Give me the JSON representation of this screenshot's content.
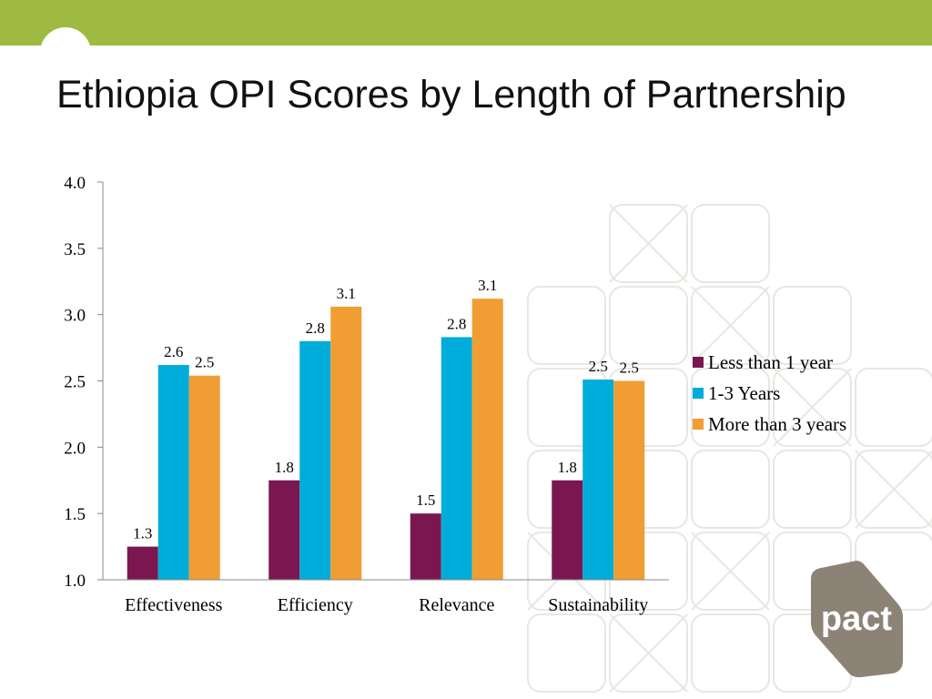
{
  "slide": {
    "title": "Ethiopia OPI Scores by Length of Partnership",
    "band_color": "#9fba40"
  },
  "logo": {
    "text": "pact",
    "color": "#8c8376"
  },
  "chart_data": {
    "type": "bar",
    "categories": [
      "Effectiveness",
      "Efficiency",
      "Relevance",
      "Sustainability"
    ],
    "series": [
      {
        "name": "Less than 1 year",
        "color": "#7b1750",
        "values": [
          1.25,
          1.75,
          1.5,
          1.75
        ],
        "labels": [
          "1.3",
          "1.8",
          "1.5",
          "1.8"
        ]
      },
      {
        "name": "1-3 Years",
        "color": "#00acd9",
        "values": [
          2.62,
          2.8,
          2.83,
          2.51
        ],
        "labels": [
          "2.6",
          "2.8",
          "2.8",
          "2.5"
        ]
      },
      {
        "name": "More than 3 years",
        "color": "#f09d33",
        "values": [
          2.54,
          3.06,
          3.12,
          2.5
        ],
        "labels": [
          "2.5",
          "3.1",
          "3.1",
          "2.5"
        ]
      }
    ],
    "yticks": [
      "1.0",
      "1.5",
      "2.0",
      "2.5",
      "3.0",
      "3.5",
      "4.0"
    ],
    "ylim": [
      1.0,
      4.0
    ],
    "grid": false,
    "legend_position": "right"
  }
}
